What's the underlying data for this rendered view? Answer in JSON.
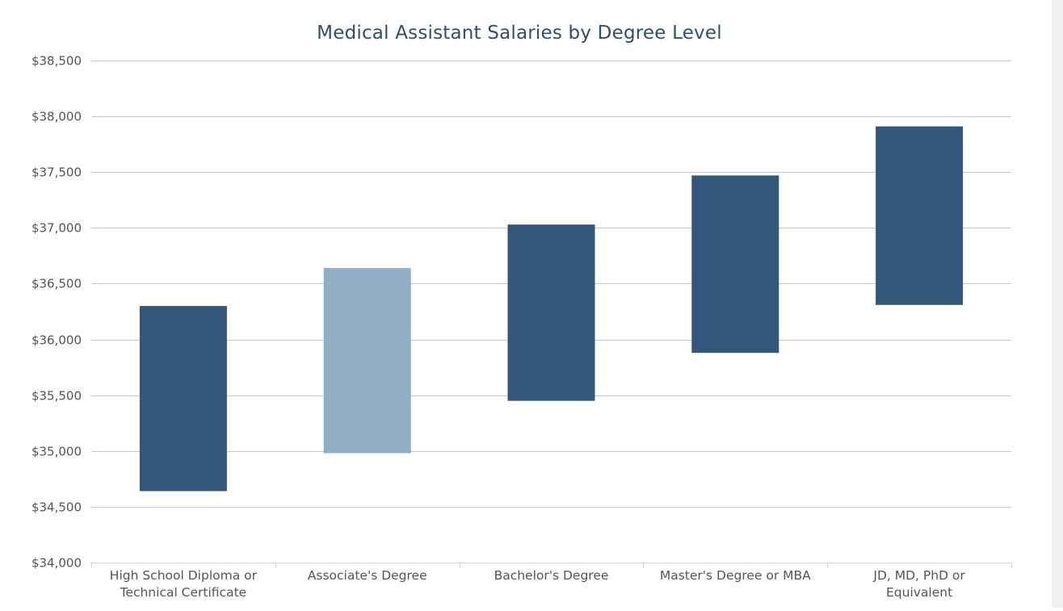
{
  "chart_data": {
    "type": "bar",
    "title": "Medical Assistant Salaries by Degree Level",
    "xlabel": "",
    "ylabel": "",
    "ylim": [
      34000,
      38500
    ],
    "yticks": [
      "$34,000",
      "$34,500",
      "$35,000",
      "$35,500",
      "$36,000",
      "$36,500",
      "$37,000",
      "$37,500",
      "$38,000",
      "$38,500"
    ],
    "grid": true,
    "categories": [
      "High School Diploma or Technical Certificate",
      "Associate's Degree",
      "Bachelor's Degree",
      "Master's Degree or MBA",
      "JD, MD, PhD or Equivalent"
    ],
    "category_lines": [
      [
        "High School Diploma or",
        "Technical Certificate"
      ],
      [
        "Associate's Degree"
      ],
      [
        "Bachelor's Degree"
      ],
      [
        "Master's Degree or MBA"
      ],
      [
        "JD, MD, PhD or",
        "Equivalent"
      ]
    ],
    "ranges": [
      {
        "low": 34640,
        "high": 36300
      },
      {
        "low": 34980,
        "high": 36640
      },
      {
        "low": 35450,
        "high": 37030
      },
      {
        "low": 35880,
        "high": 37470
      },
      {
        "low": 36310,
        "high": 37910
      }
    ],
    "highlight_index": 1,
    "colors": {
      "bar": "#345678",
      "highlight": "#93afc7",
      "grid": "#c8c8c8",
      "axis": "#ccd6e0",
      "tick_label": "#555555",
      "title": "#2f4f6f"
    }
  }
}
